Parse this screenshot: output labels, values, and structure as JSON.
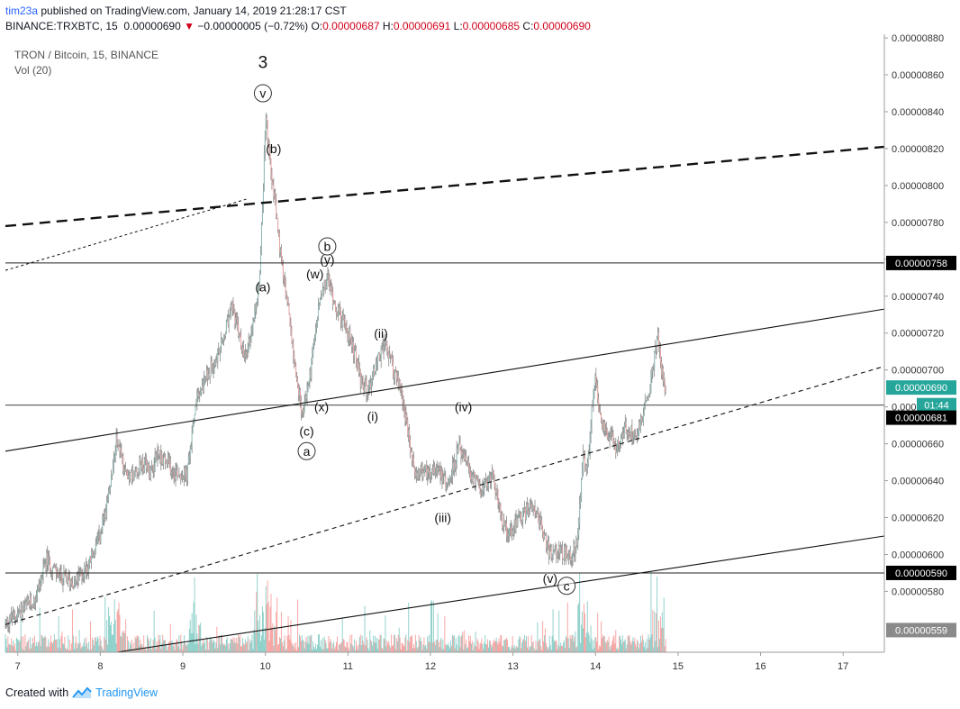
{
  "header": {
    "user": "tim23a",
    "published_text": "published on TradingView.com, January 14, 2019 21:28:17 CST",
    "symbol": "BINANCE:TRXBTC, 15",
    "last": "0.00000690",
    "change": "−0.00000005 (−0.72%)",
    "o_label": "O:",
    "o": "0.00000687",
    "h_label": "H:",
    "h": "0.00000691",
    "l_label": "L:",
    "l": "0.00000685",
    "c_label": "C:",
    "c": "0.00000690"
  },
  "legend": {
    "title": "TRON / Bitcoin, 15, BINANCE",
    "vol": "Vol (20)"
  },
  "footer": {
    "created_with": "Created with",
    "brand": "TradingView"
  },
  "colors": {
    "up": "#26a69a",
    "down": "#ef5350",
    "price_tag_bg": "#26a69a",
    "timer_bg": "#26a69a",
    "line_tag_bg": "#000000",
    "vol_tag_bg": "#8a8a8a"
  },
  "chart_data": {
    "type": "candlestick",
    "x_ticks": [
      "7",
      "8",
      "9",
      "10",
      "11",
      "12",
      "13",
      "14",
      "15",
      "16",
      "17"
    ],
    "y_ticks": [
      "0.00000880",
      "0.00000860",
      "0.00000840",
      "0.00000820",
      "0.00000800",
      "0.00000780",
      "0.00000760",
      "0.00000740",
      "0.00000720",
      "0.00000700",
      "0.00000680",
      "0.00000660",
      "0.00000640",
      "0.00000620",
      "0.00000600",
      "0.00000580"
    ],
    "ylim": [
      5.47e-06,
      8.82e-06
    ],
    "xlim": [
      6.85,
      17.5
    ],
    "price_path": [
      [
        6.85,
        5.625e-06
      ],
      [
        7.0,
        5.68e-06
      ],
      [
        7.2,
        5.75e-06
      ],
      [
        7.35,
        5.97e-06
      ],
      [
        7.5,
        5.88e-06
      ],
      [
        7.7,
        5.85e-06
      ],
      [
        7.85,
        5.94e-06
      ],
      [
        8.0,
        6.1e-06
      ],
      [
        8.1,
        6.3e-06
      ],
      [
        8.2,
        6.63e-06
      ],
      [
        8.3,
        6.45e-06
      ],
      [
        8.4,
        6.43e-06
      ],
      [
        8.5,
        6.5e-06
      ],
      [
        8.6,
        6.45e-06
      ],
      [
        8.7,
        6.55e-06
      ],
      [
        8.9,
        6.45e-06
      ],
      [
        9.05,
        6.43e-06
      ],
      [
        9.15,
        6.8e-06
      ],
      [
        9.3,
        6.98e-06
      ],
      [
        9.45,
        7.1e-06
      ],
      [
        9.6,
        7.35e-06
      ],
      [
        9.75,
        7.05e-06
      ],
      [
        9.85,
        7.25e-06
      ],
      [
        9.92,
        7.45e-06
      ],
      [
        9.97,
        7.9e-06
      ],
      [
        10.0,
        8.38e-06
      ],
      [
        10.05,
        8.15e-06
      ],
      [
        10.12,
        7.9e-06
      ],
      [
        10.2,
        7.55e-06
      ],
      [
        10.3,
        7.25e-06
      ],
      [
        10.38,
        6.95e-06
      ],
      [
        10.45,
        6.75e-06
      ],
      [
        10.55,
        7e-06
      ],
      [
        10.65,
        7.35e-06
      ],
      [
        10.75,
        7.5e-06
      ],
      [
        10.85,
        7.35e-06
      ],
      [
        10.95,
        7.25e-06
      ],
      [
        11.05,
        7.15e-06
      ],
      [
        11.15,
        6.95e-06
      ],
      [
        11.25,
        6.88e-06
      ],
      [
        11.35,
        7.05e-06
      ],
      [
        11.45,
        7.15e-06
      ],
      [
        11.55,
        7e-06
      ],
      [
        11.65,
        6.88e-06
      ],
      [
        11.8,
        6.45e-06
      ],
      [
        11.95,
        6.45e-06
      ],
      [
        12.1,
        6.48e-06
      ],
      [
        12.2,
        6.37e-06
      ],
      [
        12.35,
        6.58e-06
      ],
      [
        12.5,
        6.42e-06
      ],
      [
        12.65,
        6.35e-06
      ],
      [
        12.75,
        6.45e-06
      ],
      [
        12.85,
        6.2e-06
      ],
      [
        12.95,
        6.12e-06
      ],
      [
        13.1,
        6.2e-06
      ],
      [
        13.25,
        6.28e-06
      ],
      [
        13.35,
        6.15e-06
      ],
      [
        13.45,
        6e-06
      ],
      [
        13.55,
        6.03e-06
      ],
      [
        13.7,
        5.98e-06
      ],
      [
        13.78,
        6.07e-06
      ],
      [
        13.85,
        6.55e-06
      ],
      [
        13.9,
        6.45e-06
      ],
      [
        13.95,
        6.75e-06
      ],
      [
        14.0,
        7e-06
      ],
      [
        14.05,
        6.75e-06
      ],
      [
        14.15,
        6.65e-06
      ],
      [
        14.25,
        6.58e-06
      ],
      [
        14.35,
        6.68e-06
      ],
      [
        14.5,
        6.65e-06
      ],
      [
        14.6,
        6.8e-06
      ],
      [
        14.7,
        7e-06
      ],
      [
        14.75,
        7.2e-06
      ],
      [
        14.8,
        7e-06
      ],
      [
        14.85,
        6.9e-06
      ]
    ],
    "reference_lines": {
      "horizontal_solid": [
        7.58e-06,
        5.9e-06
      ],
      "horizontal_gray": [
        6.81e-06
      ]
    },
    "trend_lines": [
      {
        "style": "solid",
        "from": [
          6.85,
          6.56e-06
        ],
        "to": [
          17.5,
          7.33e-06
        ]
      },
      {
        "style": "dashed",
        "from": [
          6.85,
          5.62e-06
        ],
        "to": [
          17.5,
          7.02e-06
        ]
      },
      {
        "style": "solid",
        "from": [
          8.2,
          5.47e-06
        ],
        "to": [
          17.5,
          6.1e-06
        ]
      },
      {
        "style": "bold-dashed",
        "from": [
          6.85,
          7.78e-06
        ],
        "to": [
          17.5,
          8.21e-06
        ]
      },
      {
        "style": "thin-dashed",
        "from": [
          6.85,
          7.54e-06
        ],
        "to": [
          9.8,
          7.93e-06
        ]
      }
    ],
    "wave_labels": [
      {
        "text": "3",
        "x": 9.97,
        "y": 8.67e-06,
        "circled": false,
        "size": "large"
      },
      {
        "text": "v",
        "x": 9.97,
        "y": 8.5e-06,
        "circled": true
      },
      {
        "text": "(b)",
        "x": 10.1,
        "y": 8.2e-06,
        "circled": false
      },
      {
        "text": "(a)",
        "x": 9.97,
        "y": 7.45e-06,
        "circled": false
      },
      {
        "text": "b",
        "x": 10.75,
        "y": 7.67e-06,
        "circled": true
      },
      {
        "text": "(y)",
        "x": 10.75,
        "y": 7.6e-06,
        "circled": false
      },
      {
        "text": "(w)",
        "x": 10.6,
        "y": 7.52e-06,
        "circled": false
      },
      {
        "text": "(ii)",
        "x": 11.4,
        "y": 7.2e-06,
        "circled": false
      },
      {
        "text": "(x)",
        "x": 10.68,
        "y": 6.8e-06,
        "circled": false
      },
      {
        "text": "(c)",
        "x": 10.5,
        "y": 6.67e-06,
        "circled": false
      },
      {
        "text": "a",
        "x": 10.5,
        "y": 6.56e-06,
        "circled": true
      },
      {
        "text": "(i)",
        "x": 11.3,
        "y": 6.75e-06,
        "circled": false
      },
      {
        "text": "(iv)",
        "x": 12.4,
        "y": 6.8e-06,
        "circled": false
      },
      {
        "text": "(iii)",
        "x": 12.15,
        "y": 6.2e-06,
        "circled": false
      },
      {
        "text": "(v)",
        "x": 13.45,
        "y": 5.87e-06,
        "circled": false
      },
      {
        "text": "c",
        "x": 13.65,
        "y": 5.83e-06,
        "circled": true
      }
    ],
    "price_tags": [
      {
        "label": "0.00000758",
        "value": 7.58e-06,
        "kind": "line"
      },
      {
        "label": "0.00000690",
        "value": 6.9e-06,
        "kind": "last"
      },
      {
        "label": "01:44",
        "value": 6.8975e-06,
        "kind": "timer"
      },
      {
        "label": "0.00000681",
        "value": 6.81e-06,
        "kind": "line"
      },
      {
        "label": "0.00000590",
        "value": 5.9e-06,
        "kind": "line"
      },
      {
        "label": "0.00000559",
        "value": 5.59e-06,
        "kind": "vol"
      }
    ]
  }
}
